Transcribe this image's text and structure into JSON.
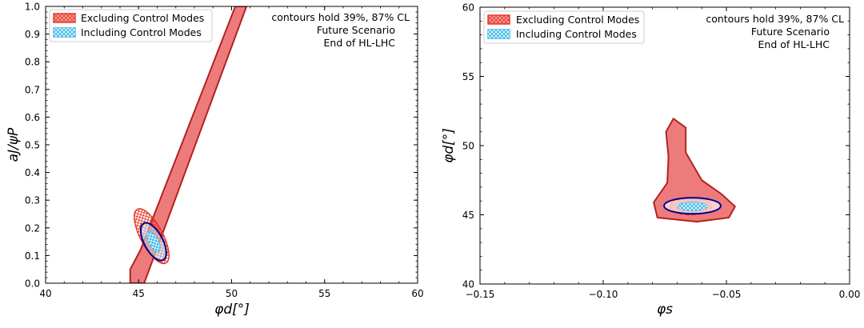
{
  "chart_data": [
    {
      "type": "contour",
      "xlabel": "φd[°]",
      "ylabel": "aJ/ψP",
      "xlim": [
        40,
        60
      ],
      "ylim": [
        0.0,
        1.0
      ],
      "xticks": [
        "40",
        "45",
        "50",
        "55",
        "60"
      ],
      "yticks": [
        "0.0",
        "0.1",
        "0.2",
        "0.3",
        "0.4",
        "0.5",
        "0.6",
        "0.7",
        "0.8",
        "0.9",
        "1.0"
      ],
      "annotations": [
        "contours hold 39%, 87% CL",
        "Future Scenario",
        "End of HL-LHC"
      ],
      "legend": {
        "placement": "top-left",
        "entries": [
          "Excluding Control Modes",
          "Including Control Modes"
        ]
      },
      "series": [
        {
          "name": "Excluding Control Modes",
          "color": "#ee7b7b",
          "edge": "#b22222",
          "outer_contour": [
            [
              44.55,
              0.0
            ],
            [
              45.3,
              0.0
            ],
            [
              46.4,
              0.2
            ],
            [
              50.8,
              1.0
            ],
            [
              50.2,
              1.0
            ],
            [
              45.1,
              0.12
            ],
            [
              44.55,
              0.05
            ]
          ],
          "inner_contour": {
            "center": [
              45.7,
              0.17
            ],
            "x_halfwidth": 0.6,
            "y_halfwidth": 0.11
          }
        },
        {
          "name": "Including Control Modes",
          "color": "#33b5e5",
          "edge": "#00008b",
          "outer_contour": {
            "center": [
              45.8,
              0.15
            ],
            "x_halfwidth": 0.5,
            "y_halfwidth": 0.075
          },
          "inner_contour": {
            "center": [
              45.8,
              0.15
            ],
            "x_halfwidth": 0.25,
            "y_halfwidth": 0.04
          }
        }
      ]
    },
    {
      "type": "contour",
      "xlabel": "φs",
      "ylabel": "φd[°]",
      "xlim": [
        -0.15,
        0.0
      ],
      "ylim": [
        40,
        60
      ],
      "xticks": [
        "−0.15",
        "−0.10",
        "−0.05",
        "0.00"
      ],
      "yticks": [
        "40",
        "45",
        "50",
        "55",
        "60"
      ],
      "annotations": [
        "contours hold 39%, 87% CL",
        "Future Scenario",
        "End of HL-LHC"
      ],
      "legend": {
        "placement": "top-left",
        "entries": [
          "Excluding Control Modes",
          "Including Control Modes"
        ]
      },
      "series": [
        {
          "name": "Excluding Control Modes",
          "color": "#ee7b7b",
          "edge": "#b22222",
          "outer_contour": [
            [
              -0.0715,
              51.95
            ],
            [
              -0.0665,
              51.3
            ],
            [
              -0.0665,
              49.5
            ],
            [
              -0.06,
              47.5
            ],
            [
              -0.052,
              46.5
            ],
            [
              -0.0465,
              45.6
            ],
            [
              -0.049,
              44.8
            ],
            [
              -0.062,
              44.5
            ],
            [
              -0.078,
              44.8
            ],
            [
              -0.0795,
              45.9
            ],
            [
              -0.074,
              47.3
            ],
            [
              -0.0735,
              49.2
            ],
            [
              -0.0745,
              51.0
            ]
          ],
          "inner_contour": {
            "center": [
              -0.0645,
              45.6
            ],
            "x_halfwidth": 0.0085,
            "y_halfwidth": 0.6
          }
        },
        {
          "name": "Including Control Modes",
          "color": "#33b5e5",
          "edge": "#00008b",
          "outer_contour": {
            "center": [
              -0.0638,
              45.65
            ],
            "x_halfwidth": 0.0115,
            "y_halfwidth": 0.58
          },
          "inner_contour": {
            "center": [
              -0.0638,
              45.6
            ],
            "x_halfwidth": 0.006,
            "y_halfwidth": 0.32
          }
        }
      ]
    }
  ]
}
